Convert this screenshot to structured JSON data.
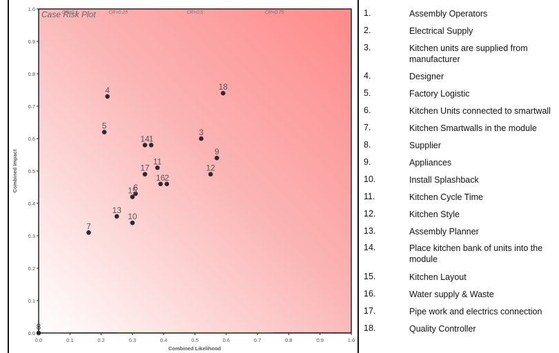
{
  "chart_data": {
    "type": "scatter",
    "title": "Case Risk Plot",
    "xlabel": "Combined Likelihood",
    "ylabel": "Combined Impact",
    "xlim": [
      0,
      1
    ],
    "ylim": [
      0,
      1
    ],
    "x_ticks": [
      "0.0",
      "0.1",
      "0.2",
      "0.3",
      "0.4",
      "0.5",
      "0.6",
      "0.7",
      "0.8",
      "0.9",
      "1.0"
    ],
    "y_ticks": [
      "0.0",
      "0.1",
      "0.2",
      "0.3",
      "0.4",
      "0.5",
      "0.6",
      "0.7",
      "0.8",
      "0.9",
      "1.0"
    ],
    "grid": false,
    "contours": [
      {
        "label": "CR=0.1",
        "level": 0.1,
        "color": "#2e9e3a"
      },
      {
        "label": "CR=0.25",
        "level": 0.25,
        "color": "#7ad12e"
      },
      {
        "label": "CR=0.5",
        "level": 0.5,
        "color": "#f2c21a"
      },
      {
        "label": "CR=0.75",
        "level": 0.75,
        "color": "#e02020"
      }
    ],
    "points": [
      {
        "label": "1",
        "x": 0.36,
        "y": 0.58
      },
      {
        "label": "2",
        "x": 0.41,
        "y": 0.46
      },
      {
        "label": "3",
        "x": 0.52,
        "y": 0.6
      },
      {
        "label": "4",
        "x": 0.22,
        "y": 0.73
      },
      {
        "label": "5",
        "x": 0.21,
        "y": 0.62
      },
      {
        "label": "6",
        "x": 0.31,
        "y": 0.43
      },
      {
        "label": "7",
        "x": 0.16,
        "y": 0.31
      },
      {
        "label": "8",
        "x": 0.0,
        "y": 0.0
      },
      {
        "label": "9",
        "x": 0.57,
        "y": 0.54
      },
      {
        "label": "10",
        "x": 0.3,
        "y": 0.34
      },
      {
        "label": "11",
        "x": 0.38,
        "y": 0.51
      },
      {
        "label": "12",
        "x": 0.55,
        "y": 0.49
      },
      {
        "label": "13",
        "x": 0.25,
        "y": 0.36
      },
      {
        "label": "14",
        "x": 0.34,
        "y": 0.58
      },
      {
        "label": "15",
        "x": 0.3,
        "y": 0.42
      },
      {
        "label": "16",
        "x": 0.39,
        "y": 0.46
      },
      {
        "label": "17",
        "x": 0.34,
        "y": 0.49
      },
      {
        "label": "18",
        "x": 0.59,
        "y": 0.74
      }
    ],
    "background_colors": [
      "#ffffff",
      "#ff8a8a"
    ],
    "point_color": "#2b2b2b"
  },
  "legend": {
    "items": [
      {
        "num": "1.",
        "label": "Assembly Operators"
      },
      {
        "num": "2.",
        "label": "Electrical Supply"
      },
      {
        "num": "3.",
        "label": "Kitchen units are supplied from manufacturer"
      },
      {
        "num": "4.",
        "label": "Designer"
      },
      {
        "num": "5.",
        "label": "Factory Logistic"
      },
      {
        "num": "6.",
        "label": "Kitchen Units connected to smartwall"
      },
      {
        "num": "7.",
        "label": "Kitchen Smartwalls  in the module"
      },
      {
        "num": "8.",
        "label": "Supplier"
      },
      {
        "num": "9.",
        "label": "Appliances"
      },
      {
        "num": "10.",
        "label": "Install Splashback"
      },
      {
        "num": "11.",
        "label": "Kitchen Cycle Time"
      },
      {
        "num": "12.",
        "label": "Kitchen Style"
      },
      {
        "num": "13.",
        "label": "Assembly Planner"
      },
      {
        "num": "14.",
        "label": "Place kitchen bank of units into the module"
      },
      {
        "num": "15.",
        "label": "Kitchen Layout"
      },
      {
        "num": "16.",
        "label": "Water supply & Waste"
      },
      {
        "num": "17.",
        "label": "Pipe work and electrics connection"
      },
      {
        "num": "18.",
        "label": "Quality Controller"
      }
    ]
  }
}
